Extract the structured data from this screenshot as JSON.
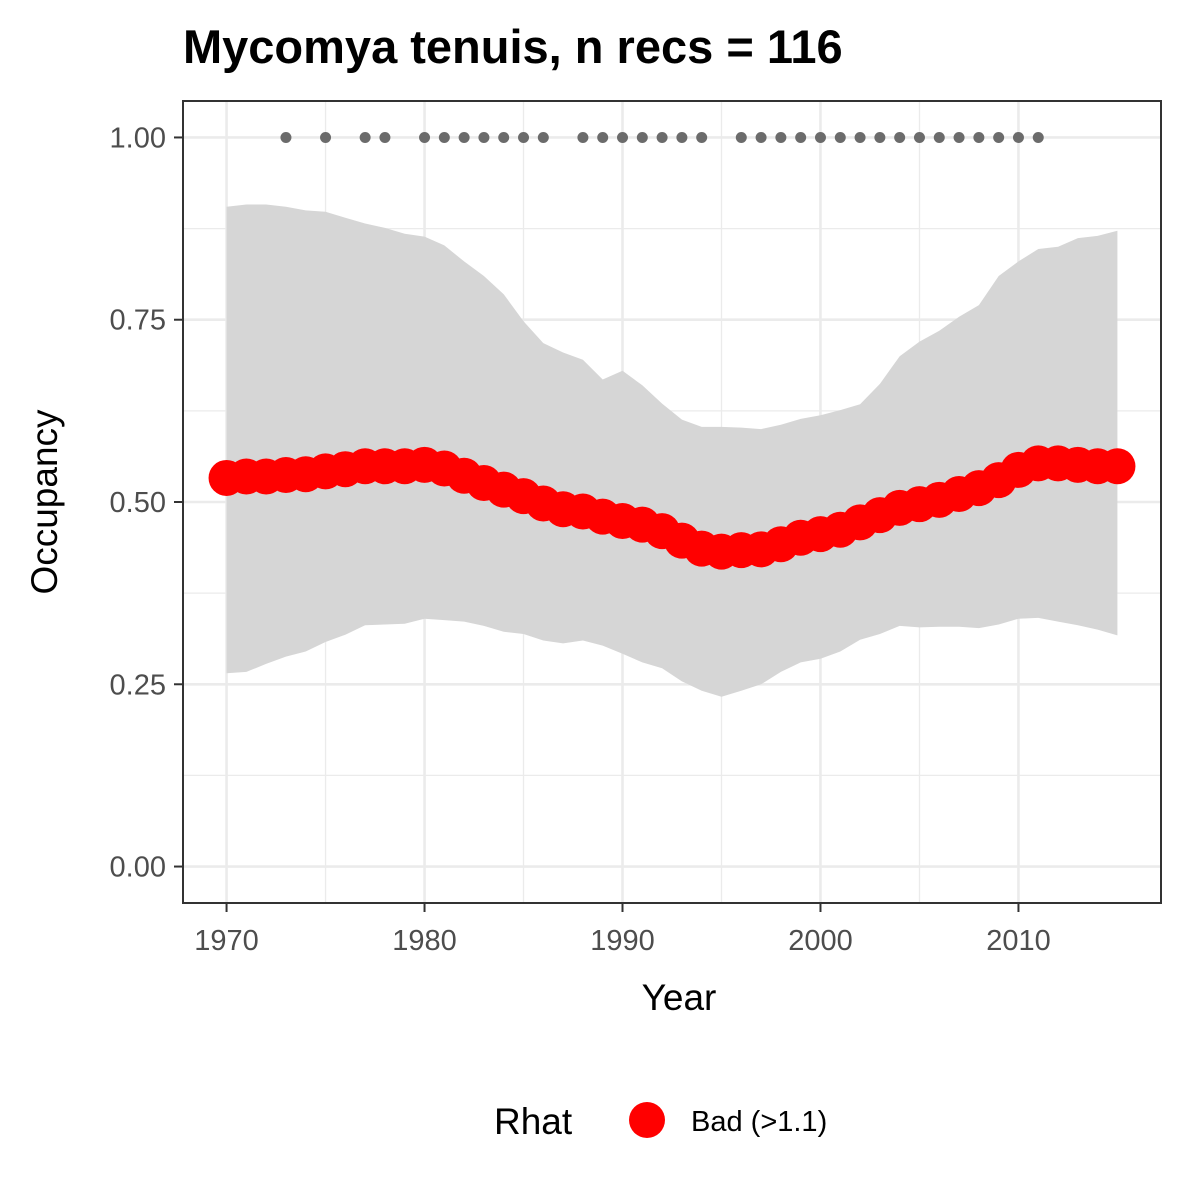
{
  "chart_data": {
    "type": "line",
    "title": "Mycomya tenuis, n recs = 116",
    "xlabel": "Year",
    "ylabel": "Occupancy",
    "xlim": [
      1967.8,
      2017.2
    ],
    "ylim": [
      -0.05,
      1.05
    ],
    "x_ticks": [
      1970,
      1980,
      1990,
      2000,
      2010
    ],
    "y_ticks": [
      0.0,
      0.25,
      0.5,
      0.75,
      1.0
    ],
    "x_tick_labels": [
      "1970",
      "1980",
      "1990",
      "2000",
      "2010"
    ],
    "y_tick_labels": [
      "0.00",
      "0.25",
      "0.50",
      "0.75",
      "1.00"
    ],
    "grid": true,
    "legend": {
      "title": "Rhat",
      "position": "bottom",
      "entries": [
        {
          "label": "Bad (>1.1)",
          "color": "#ff0000"
        }
      ]
    },
    "colors": {
      "mean": "#ff0000",
      "ribbon": "#d6d6d6",
      "records": "#6b6b6b"
    },
    "series": [
      {
        "name": "Bad (>1.1)",
        "x": [
          1970,
          1971,
          1972,
          1973,
          1974,
          1975,
          1976,
          1977,
          1978,
          1979,
          1980,
          1981,
          1982,
          1983,
          1984,
          1985,
          1986,
          1987,
          1988,
          1989,
          1990,
          1991,
          1992,
          1993,
          1994,
          1995,
          1996,
          1997,
          1998,
          1999,
          2000,
          2001,
          2002,
          2003,
          2004,
          2005,
          2006,
          2007,
          2008,
          2009,
          2010,
          2011,
          2012,
          2013,
          2014,
          2015
        ],
        "mean": [
          0.533,
          0.535,
          0.535,
          0.537,
          0.538,
          0.542,
          0.545,
          0.549,
          0.549,
          0.549,
          0.551,
          0.546,
          0.536,
          0.526,
          0.517,
          0.508,
          0.498,
          0.49,
          0.487,
          0.48,
          0.474,
          0.469,
          0.46,
          0.447,
          0.436,
          0.432,
          0.434,
          0.435,
          0.442,
          0.451,
          0.456,
          0.462,
          0.472,
          0.482,
          0.492,
          0.497,
          0.503,
          0.511,
          0.519,
          0.53,
          0.544,
          0.553,
          0.553,
          0.551,
          0.549,
          0.549
        ],
        "lower": [
          0.265,
          0.267,
          0.278,
          0.288,
          0.295,
          0.308,
          0.318,
          0.331,
          0.332,
          0.333,
          0.34,
          0.338,
          0.336,
          0.33,
          0.322,
          0.319,
          0.31,
          0.306,
          0.31,
          0.303,
          0.292,
          0.28,
          0.272,
          0.254,
          0.241,
          0.233,
          0.241,
          0.25,
          0.267,
          0.28,
          0.285,
          0.295,
          0.311,
          0.319,
          0.33,
          0.328,
          0.329,
          0.329,
          0.327,
          0.332,
          0.34,
          0.341,
          0.336,
          0.331,
          0.325,
          0.317
        ],
        "upper": [
          0.905,
          0.908,
          0.908,
          0.905,
          0.9,
          0.898,
          0.89,
          0.882,
          0.876,
          0.868,
          0.864,
          0.852,
          0.83,
          0.81,
          0.785,
          0.748,
          0.718,
          0.705,
          0.695,
          0.668,
          0.68,
          0.66,
          0.635,
          0.613,
          0.603,
          0.603,
          0.602,
          0.6,
          0.606,
          0.614,
          0.619,
          0.626,
          0.634,
          0.662,
          0.7,
          0.72,
          0.735,
          0.754,
          0.77,
          0.81,
          0.83,
          0.847,
          0.85,
          0.862,
          0.865,
          0.872
        ]
      }
    ],
    "record_years": [
      1973,
      1975,
      1977,
      1978,
      1980,
      1981,
      1982,
      1983,
      1984,
      1985,
      1986,
      1988,
      1989,
      1990,
      1991,
      1992,
      1993,
      1994,
      1996,
      1997,
      1998,
      1999,
      2000,
      2001,
      2002,
      2003,
      2004,
      2005,
      2006,
      2007,
      2008,
      2009,
      2010,
      2011
    ],
    "record_value": 1.0
  }
}
